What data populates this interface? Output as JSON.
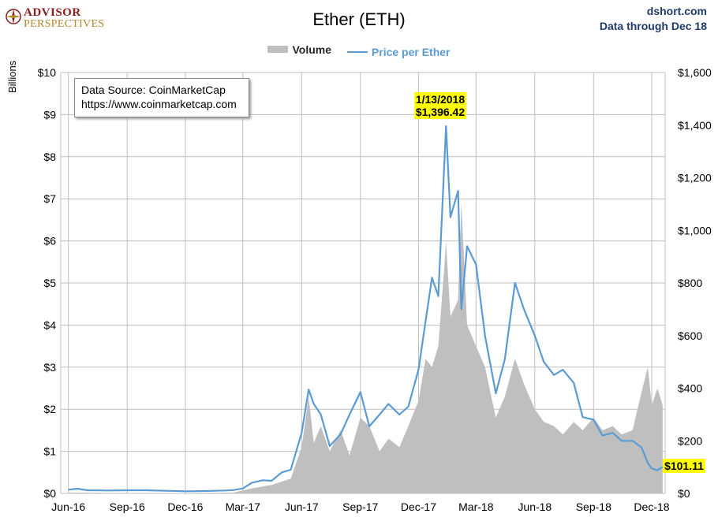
{
  "header": {
    "logo_line1": "ADVISOR",
    "logo_line2": "PERSPECTIVES",
    "title": "Ether (ETH)",
    "site": "dshort.com",
    "through": "Data through Dec 18"
  },
  "legend": {
    "volume": "Volume",
    "price": "Price per Ether"
  },
  "source_box": {
    "line1": "Data Source: CoinMarketCap",
    "line2": "https://www.coinmarketcap.com"
  },
  "annotations": {
    "peak_date": "1/13/2018",
    "peak_price": "$1,396.42",
    "last_price": "$101.11"
  },
  "colors": {
    "volume": "#bfbfbf",
    "price": "#5b9bd5",
    "highlight": "#ffff00",
    "logo_red": "#8b1a1a",
    "logo_gold": "#b08a2c",
    "header_blue": "#1f3a6b"
  },
  "chart_data": {
    "type": "area",
    "title": "Ether (ETH)",
    "y_left_label": "Billions",
    "y_left_range": [
      0,
      10
    ],
    "y_left_ticks": [
      "$0",
      "$1",
      "$2",
      "$3",
      "$4",
      "$5",
      "$6",
      "$7",
      "$8",
      "$9",
      "$10"
    ],
    "y_right_range": [
      0,
      1600
    ],
    "y_right_ticks": [
      "$0",
      "$200",
      "$400",
      "$600",
      "$800",
      "$1,000",
      "$1,200",
      "$1,400",
      "$1,600"
    ],
    "x_ticks": [
      "Jun-16",
      "Sep-16",
      "Dec-16",
      "Mar-17",
      "Jun-17",
      "Sep-17",
      "Dec-17",
      "Mar-18",
      "Jun-18",
      "Sep-18",
      "Dec-18"
    ],
    "grid": true,
    "legend_position": "top-center",
    "series": [
      {
        "name": "Volume",
        "type": "area",
        "axis": "left",
        "points": [
          [
            "2016-06-01",
            0.02
          ],
          [
            "2016-09-01",
            0.01
          ],
          [
            "2016-12-01",
            0.01
          ],
          [
            "2017-02-15",
            0.02
          ],
          [
            "2017-03-15",
            0.12
          ],
          [
            "2017-04-15",
            0.2
          ],
          [
            "2017-05-15",
            0.35
          ],
          [
            "2017-06-01",
            1.1
          ],
          [
            "2017-06-12",
            2.3
          ],
          [
            "2017-06-20",
            1.2
          ],
          [
            "2017-07-01",
            1.6
          ],
          [
            "2017-07-15",
            1.0
          ],
          [
            "2017-08-01",
            1.5
          ],
          [
            "2017-08-15",
            0.9
          ],
          [
            "2017-09-01",
            1.8
          ],
          [
            "2017-09-15",
            1.6
          ],
          [
            "2017-10-01",
            1.0
          ],
          [
            "2017-10-15",
            1.3
          ],
          [
            "2017-11-01",
            1.1
          ],
          [
            "2017-11-15",
            1.6
          ],
          [
            "2017-12-01",
            2.2
          ],
          [
            "2017-12-12",
            3.2
          ],
          [
            "2017-12-22",
            3.0
          ],
          [
            "2018-01-01",
            3.5
          ],
          [
            "2018-01-10",
            5.3
          ],
          [
            "2018-01-13",
            6.0
          ],
          [
            "2018-01-20",
            4.2
          ],
          [
            "2018-02-01",
            4.6
          ],
          [
            "2018-02-06",
            6.9
          ],
          [
            "2018-02-15",
            4.0
          ],
          [
            "2018-03-01",
            3.5
          ],
          [
            "2018-03-15",
            3.0
          ],
          [
            "2018-04-01",
            1.8
          ],
          [
            "2018-04-15",
            2.3
          ],
          [
            "2018-05-01",
            3.2
          ],
          [
            "2018-05-15",
            2.6
          ],
          [
            "2018-06-01",
            2.0
          ],
          [
            "2018-06-15",
            1.7
          ],
          [
            "2018-07-01",
            1.6
          ],
          [
            "2018-07-15",
            1.4
          ],
          [
            "2018-08-01",
            1.7
          ],
          [
            "2018-08-15",
            1.5
          ],
          [
            "2018-09-01",
            1.8
          ],
          [
            "2018-09-15",
            1.5
          ],
          [
            "2018-10-01",
            1.6
          ],
          [
            "2018-10-15",
            1.4
          ],
          [
            "2018-11-01",
            1.5
          ],
          [
            "2018-11-15",
            2.4
          ],
          [
            "2018-11-25",
            3.0
          ],
          [
            "2018-12-01",
            2.1
          ],
          [
            "2018-12-10",
            2.5
          ],
          [
            "2018-12-18",
            2.1
          ]
        ]
      },
      {
        "name": "Price per Ether",
        "type": "line",
        "axis": "right",
        "points": [
          [
            "2016-06-01",
            14
          ],
          [
            "2016-06-15",
            18
          ],
          [
            "2016-07-01",
            12
          ],
          [
            "2016-08-01",
            11
          ],
          [
            "2016-09-01",
            12
          ],
          [
            "2016-10-01",
            12
          ],
          [
            "2016-11-01",
            10
          ],
          [
            "2016-12-01",
            8
          ],
          [
            "2017-01-01",
            9
          ],
          [
            "2017-02-01",
            11
          ],
          [
            "2017-02-15",
            13
          ],
          [
            "2017-03-01",
            19
          ],
          [
            "2017-03-15",
            40
          ],
          [
            "2017-04-01",
            50
          ],
          [
            "2017-04-15",
            48
          ],
          [
            "2017-05-01",
            80
          ],
          [
            "2017-05-15",
            90
          ],
          [
            "2017-06-01",
            230
          ],
          [
            "2017-06-12",
            395
          ],
          [
            "2017-06-20",
            340
          ],
          [
            "2017-07-01",
            300
          ],
          [
            "2017-07-15",
            180
          ],
          [
            "2017-08-01",
            225
          ],
          [
            "2017-08-15",
            300
          ],
          [
            "2017-09-01",
            385
          ],
          [
            "2017-09-15",
            255
          ],
          [
            "2017-10-01",
            300
          ],
          [
            "2017-10-15",
            340
          ],
          [
            "2017-11-01",
            300
          ],
          [
            "2017-11-15",
            330
          ],
          [
            "2017-12-01",
            470
          ],
          [
            "2017-12-12",
            655
          ],
          [
            "2017-12-22",
            820
          ],
          [
            "2018-01-01",
            750
          ],
          [
            "2018-01-13",
            1396
          ],
          [
            "2018-01-20",
            1050
          ],
          [
            "2018-02-01",
            1150
          ],
          [
            "2018-02-06",
            700
          ],
          [
            "2018-02-15",
            940
          ],
          [
            "2018-03-01",
            870
          ],
          [
            "2018-03-15",
            600
          ],
          [
            "2018-04-01",
            380
          ],
          [
            "2018-04-15",
            510
          ],
          [
            "2018-05-01",
            800
          ],
          [
            "2018-05-15",
            700
          ],
          [
            "2018-06-01",
            600
          ],
          [
            "2018-06-15",
            500
          ],
          [
            "2018-07-01",
            450
          ],
          [
            "2018-07-15",
            470
          ],
          [
            "2018-08-01",
            420
          ],
          [
            "2018-08-15",
            290
          ],
          [
            "2018-09-01",
            280
          ],
          [
            "2018-09-15",
            220
          ],
          [
            "2018-10-01",
            230
          ],
          [
            "2018-10-15",
            200
          ],
          [
            "2018-11-01",
            200
          ],
          [
            "2018-11-15",
            175
          ],
          [
            "2018-11-25",
            115
          ],
          [
            "2018-12-01",
            95
          ],
          [
            "2018-12-10",
            88
          ],
          [
            "2018-12-18",
            101.11
          ]
        ]
      }
    ]
  }
}
